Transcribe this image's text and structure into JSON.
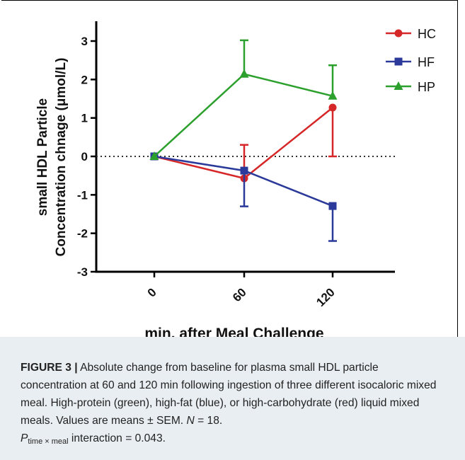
{
  "chart_data": {
    "type": "line",
    "title": "",
    "xlabel": "min. after Meal Challenge",
    "ylabel": "small HDL Particle Concentration chnage (μmol/L)",
    "ylabel_lines": [
      "small HDL Particle",
      "Concentration chnage (μmol/L)"
    ],
    "categories": [
      "0",
      "60",
      "120"
    ],
    "x": [
      0,
      60,
      120
    ],
    "ylim": [
      -3,
      3.5
    ],
    "yticks": [
      "3",
      "2",
      "1",
      "0",
      "-1",
      "-2",
      "-3"
    ],
    "reference_line": {
      "y": 0,
      "style": "dotted"
    },
    "legend_position": "top-right",
    "series": [
      {
        "name": "HC",
        "color": "#d62728",
        "marker": "circle",
        "values": [
          0,
          -0.57,
          1.27
        ],
        "error_up": [
          0,
          0.87,
          0
        ],
        "error_down": [
          0,
          0,
          1.27
        ]
      },
      {
        "name": "HF",
        "color": "#2b3a9a",
        "marker": "square",
        "values": [
          0,
          -0.37,
          -1.29
        ],
        "error_up": [
          0,
          0,
          0
        ],
        "error_down": [
          0,
          0.93,
          0.91
        ]
      },
      {
        "name": "HP",
        "color": "#2ca02c",
        "marker": "triangle",
        "values": [
          0,
          2.14,
          1.57
        ],
        "error_up": [
          0,
          0.88,
          0.8
        ],
        "error_down": [
          0,
          0,
          0
        ]
      }
    ]
  },
  "caption": {
    "label": "FIGURE 3 |",
    "text": "Absolute change from baseline for plasma small HDL particle concentration at 60 and 120 min following ingestion of three different isocaloric mixed meal. High-protein (green), high-fat (blue), or high-carbohydrate (red) liquid mixed meals. Values are means ± SEM.",
    "n_label": "N",
    "n_text": " = 18.",
    "p_label": "P",
    "p_sub": "time × meal",
    "p_text": " interaction = 0.043."
  }
}
